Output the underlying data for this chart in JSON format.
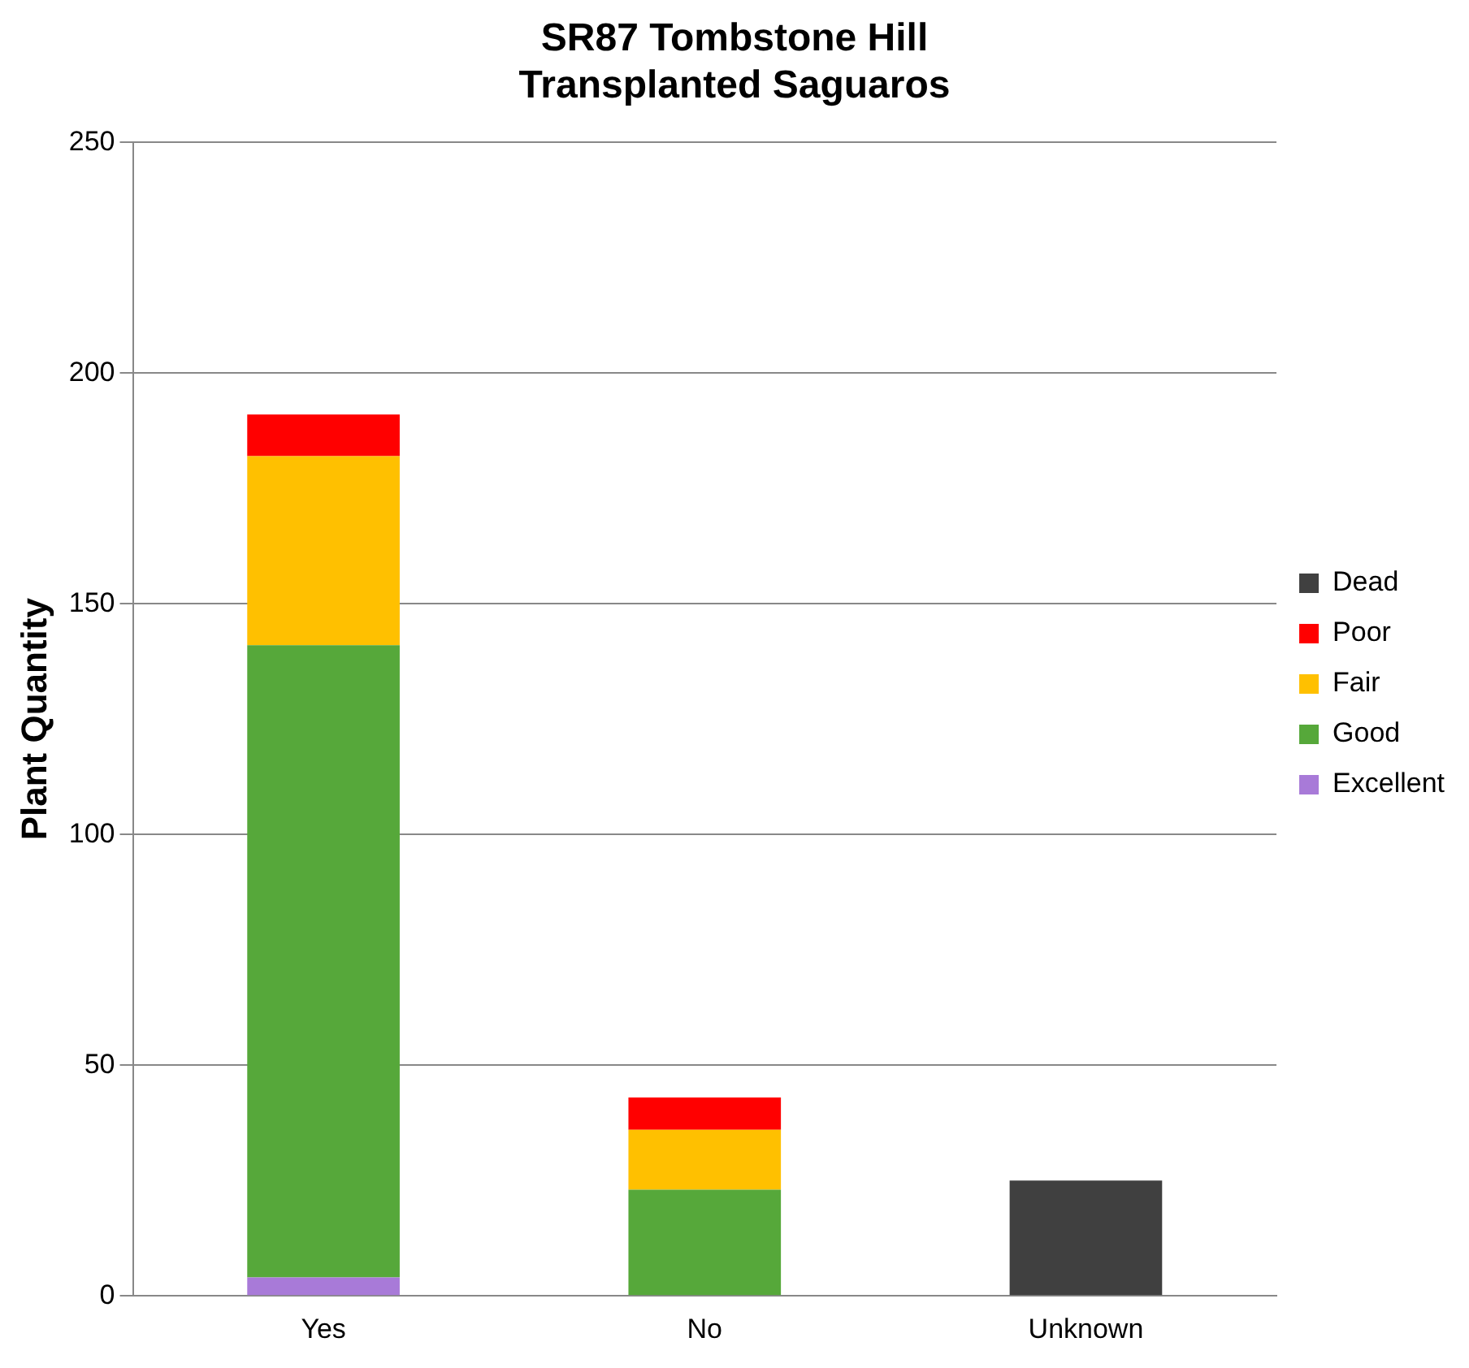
{
  "chart_data": {
    "type": "bar",
    "title": "SR87 Tombstone Hill\nTransplanted Saguaros",
    "ylabel": "Plant Quantity",
    "categories": [
      "Yes",
      "No",
      "Unknown"
    ],
    "stacked": true,
    "series": [
      {
        "name": "Excellent",
        "color": "#a87ad8",
        "values": [
          4,
          0,
          0
        ]
      },
      {
        "name": "Good",
        "color": "#56a83a",
        "values": [
          137,
          23,
          0
        ]
      },
      {
        "name": "Fair",
        "color": "#ffc000",
        "values": [
          41,
          13,
          0
        ]
      },
      {
        "name": "Poor",
        "color": "#ff0000",
        "values": [
          9,
          7,
          0
        ]
      },
      {
        "name": "Dead",
        "color": "#404040",
        "values": [
          0,
          0,
          25
        ]
      }
    ],
    "ylim": [
      0,
      250
    ],
    "yticks": [
      0,
      50,
      100,
      150,
      200,
      250
    ],
    "grid": "y",
    "legend": "right"
  }
}
